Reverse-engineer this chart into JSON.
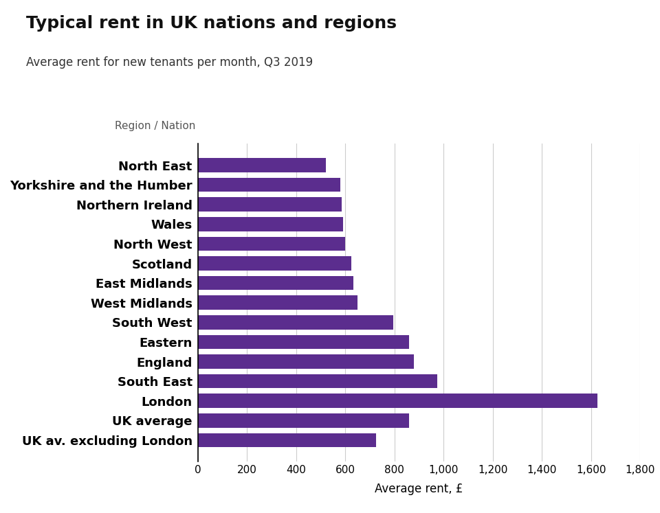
{
  "title": "Typical rent in UK nations and regions",
  "subtitle": "Average rent for new tenants per month, Q3 2019",
  "ylabel_label": "Region / Nation",
  "xlabel_label": "Average rent, £",
  "bar_color": "#5b2d8e",
  "background_color": "#ffffff",
  "categories": [
    "North East",
    "Yorkshire and the Humber",
    "Northern Ireland",
    "Wales",
    "North West",
    "Scotland",
    "East Midlands",
    "West Midlands",
    "South West",
    "Eastern",
    "England",
    "South East",
    "London",
    "UK average",
    "UK av. excluding London"
  ],
  "values": [
    520,
    578,
    585,
    590,
    600,
    625,
    632,
    650,
    795,
    860,
    880,
    975,
    1625,
    860,
    725
  ],
  "xlim": [
    0,
    1800
  ],
  "xticks": [
    0,
    200,
    400,
    600,
    800,
    1000,
    1200,
    1400,
    1600,
    1800
  ]
}
